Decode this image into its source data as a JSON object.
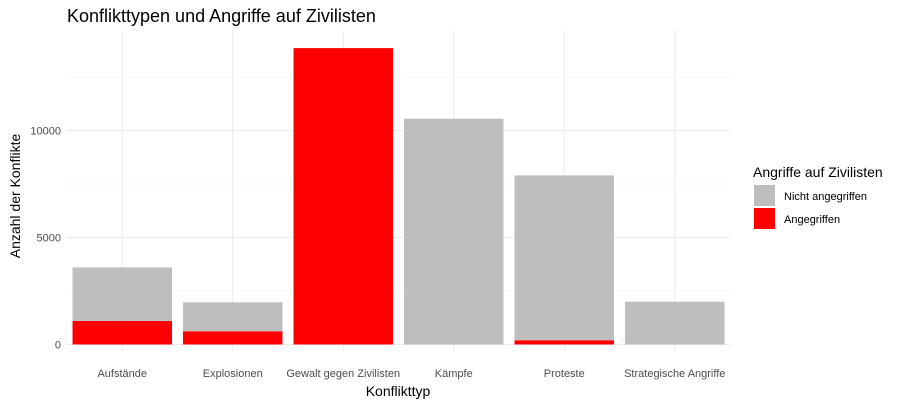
{
  "chart_data": {
    "type": "bar",
    "stacked": true,
    "title": "Konflikttypen und Angriffe auf Zivilisten",
    "xlabel": "Konflikttyp",
    "ylabel": "Anzahl der Konflikte",
    "categories": [
      "Aufstände",
      "Explosionen",
      "Gewalt gegen Zivilisten",
      "Kämpfe",
      "Proteste",
      "Strategische Angriffe"
    ],
    "series": [
      {
        "name": "Nicht angegriffen",
        "color": "#bebebe",
        "values": [
          2500,
          1350,
          0,
          10550,
          7700,
          2000
        ]
      },
      {
        "name": "Angegriffen",
        "color": "#ff0000",
        "values": [
          1100,
          620,
          13850,
          0,
          200,
          0
        ]
      }
    ],
    "ylim": [
      0,
      14500
    ],
    "yticks": [
      0,
      5000,
      10000
    ],
    "ytick_labels": [
      "0",
      "5000",
      "10000"
    ],
    "grid": true,
    "legend": {
      "title": "Angriffe auf Zivilisten",
      "position": "right"
    }
  }
}
